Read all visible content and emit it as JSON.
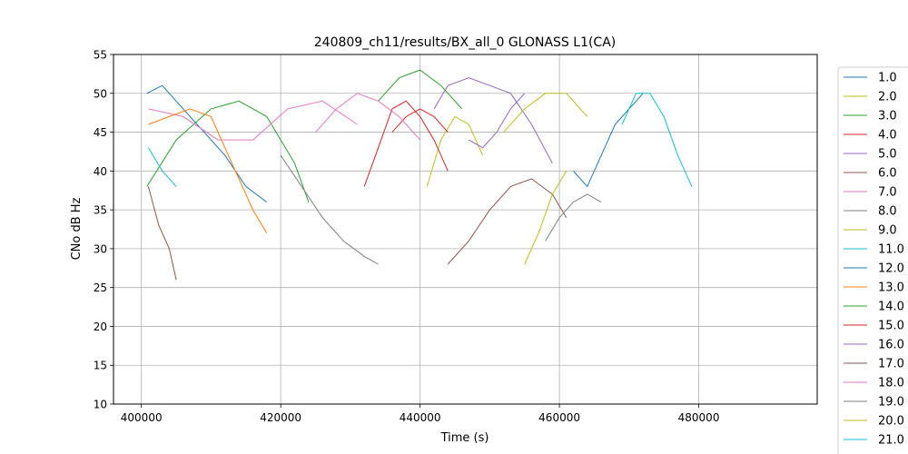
{
  "chart_data": {
    "type": "line",
    "title": "240809_ch11/results/BX_all_0 GLONASS L1(CA)",
    "xlabel": "Time (s)",
    "ylabel": "CNo dB Hz",
    "xlim": [
      396000,
      497000
    ],
    "ylim": [
      10,
      55
    ],
    "xticks": [
      400000,
      420000,
      440000,
      460000,
      480000
    ],
    "xtick_labels": [
      "400000",
      "420000",
      "440000",
      "460000",
      "480000"
    ],
    "yticks": [
      10,
      15,
      20,
      25,
      30,
      35,
      40,
      45,
      50,
      55
    ],
    "ytick_labels": [
      "10",
      "15",
      "20",
      "25",
      "30",
      "35",
      "40",
      "45",
      "50",
      "55"
    ],
    "grid": true,
    "legend_position": "right (outside plot, partially cut off)",
    "series": [
      {
        "name": "1.0",
        "color": "#1f77b4",
        "x": [
          400800,
          403000,
          406000,
          409000,
          412000,
          415000,
          418000
        ],
        "y": [
          50,
          51,
          48,
          45,
          42,
          38,
          36
        ]
      },
      {
        "name": "2.0",
        "color": "#bcbd22",
        "x": [
          441000,
          443000,
          445000,
          447000,
          449000
        ],
        "y": [
          38,
          44,
          47,
          46,
          42
        ]
      },
      {
        "name": "3.0",
        "color": "#2ca02c",
        "x": [
          400800,
          405000,
          410000,
          414000,
          418000,
          422000,
          424000
        ],
        "y": [
          38,
          44,
          48,
          49,
          47,
          41,
          36
        ]
      },
      {
        "name": "4.0",
        "color": "#d62728",
        "x": [
          432000,
          434000,
          436000,
          438000,
          440000,
          442000,
          444000
        ],
        "y": [
          38,
          43,
          48,
          49,
          47,
          44,
          40
        ]
      },
      {
        "name": "5.0",
        "color": "#9467bd",
        "x": [
          442000,
          444000,
          447000,
          450000,
          453000,
          456000,
          459000
        ],
        "y": [
          48,
          51,
          52,
          51,
          50,
          46,
          41
        ]
      },
      {
        "name": "6.0",
        "color": "#8c564b",
        "x": [
          401000,
          402500,
          404000,
          405000
        ],
        "y": [
          38,
          33,
          30,
          26
        ]
      },
      {
        "name": "7.0",
        "color": "#e377c2",
        "x": [
          401000,
          406000,
          411000,
          416000,
          421000,
          426000,
          431000
        ],
        "y": [
          48,
          47,
          44,
          44,
          48,
          49,
          46
        ]
      },
      {
        "name": "8.0",
        "color": "#7f7f7f",
        "x": [
          420000,
          423000,
          426000,
          429000,
          432000,
          434000
        ],
        "y": [
          42,
          38,
          34,
          31,
          29,
          28
        ]
      },
      {
        "name": "9.0",
        "color": "#bcbd22",
        "x": [
          452000,
          455000,
          458000,
          461000,
          464000
        ],
        "y": [
          45,
          48,
          50,
          50,
          47
        ]
      },
      {
        "name": "11.0",
        "color": "#17becf",
        "x": [
          401000,
          403000,
          405000
        ],
        "y": [
          43,
          40,
          38
        ]
      },
      {
        "name": "12.0",
        "color": "#1f77b4",
        "x": [
          462000,
          464000,
          466000,
          468000,
          470000,
          472000
        ],
        "y": [
          40,
          38,
          42,
          46,
          48,
          50
        ]
      },
      {
        "name": "13.0",
        "color": "#ff7f0e",
        "x": [
          401000,
          404000,
          407000,
          410000,
          413000,
          416000,
          418000
        ],
        "y": [
          46,
          47,
          48,
          47,
          41,
          35,
          32
        ]
      },
      {
        "name": "14.0",
        "color": "#2ca02c",
        "x": [
          434000,
          437000,
          440000,
          443000,
          446000
        ],
        "y": [
          49,
          52,
          53,
          51,
          48
        ]
      },
      {
        "name": "15.0",
        "color": "#d62728",
        "x": [
          436000,
          438000,
          440000,
          442000,
          444000
        ],
        "y": [
          45,
          47,
          48,
          47,
          45
        ]
      },
      {
        "name": "16.0",
        "color": "#9467bd",
        "x": [
          447000,
          449000,
          451000,
          453000,
          455000
        ],
        "y": [
          44,
          43,
          45,
          48,
          50
        ]
      },
      {
        "name": "17.0",
        "color": "#8c564b",
        "x": [
          444000,
          447000,
          450000,
          453000,
          456000,
          459000,
          461000
        ],
        "y": [
          28,
          31,
          35,
          38,
          39,
          37,
          34
        ]
      },
      {
        "name": "18.0",
        "color": "#e377c2",
        "x": [
          425000,
          428000,
          431000,
          434000,
          437000,
          440000
        ],
        "y": [
          45,
          48,
          50,
          49,
          47,
          44
        ]
      },
      {
        "name": "19.0",
        "color": "#7f7f7f",
        "x": [
          458000,
          460000,
          462000,
          464000,
          466000
        ],
        "y": [
          31,
          34,
          36,
          37,
          36
        ]
      },
      {
        "name": "20.0",
        "color": "#bcbd22",
        "x": [
          455000,
          457000,
          459000,
          461000
        ],
        "y": [
          28,
          32,
          37,
          40
        ]
      },
      {
        "name": "21.0",
        "color": "#17becf",
        "x": [
          469000,
          471000,
          473000,
          475000,
          477000,
          479000
        ],
        "y": [
          46,
          50,
          50,
          47,
          42,
          38
        ]
      }
    ]
  }
}
